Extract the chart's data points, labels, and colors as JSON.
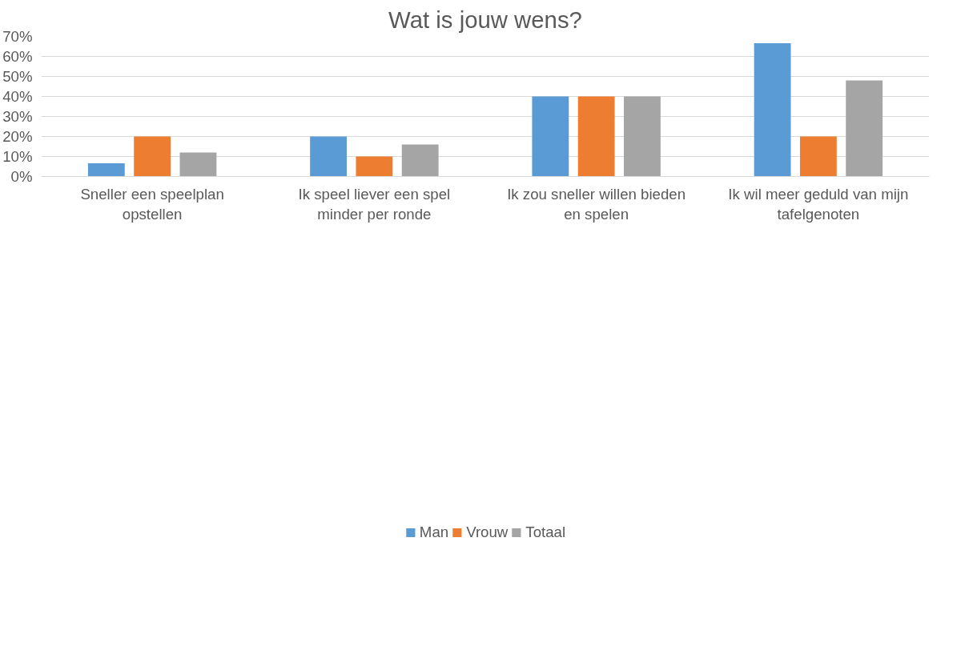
{
  "chart_data": {
    "type": "bar",
    "title": "Wat is jouw wens?",
    "categories": [
      "Sneller een speelplan opstellen",
      "Ik speel liever een spel minder per ronde",
      "Ik zou sneller willen bieden en spelen",
      "Ik wil meer geduld van mijn tafelgenoten"
    ],
    "series": [
      {
        "name": "Man",
        "color": "#5b9bd5",
        "values": [
          6.6,
          20,
          40,
          66.6
        ]
      },
      {
        "name": "Vrouw",
        "color": "#ed7d31",
        "values": [
          20,
          10,
          40,
          20
        ]
      },
      {
        "name": "Totaal",
        "color": "#a5a5a5",
        "values": [
          12,
          16,
          40,
          48
        ]
      }
    ],
    "ylim": [
      0,
      70
    ],
    "yticks": [
      {
        "value": 0,
        "label": "0%"
      },
      {
        "value": 10,
        "label": "10%"
      },
      {
        "value": 20,
        "label": "20%"
      },
      {
        "value": 30,
        "label": "30%"
      },
      {
        "value": 40,
        "label": "40%"
      },
      {
        "value": 50,
        "label": "50%"
      },
      {
        "value": 60,
        "label": "60%"
      },
      {
        "value": 70,
        "label": "70%"
      }
    ],
    "grid": "y",
    "legend": "bottom"
  }
}
